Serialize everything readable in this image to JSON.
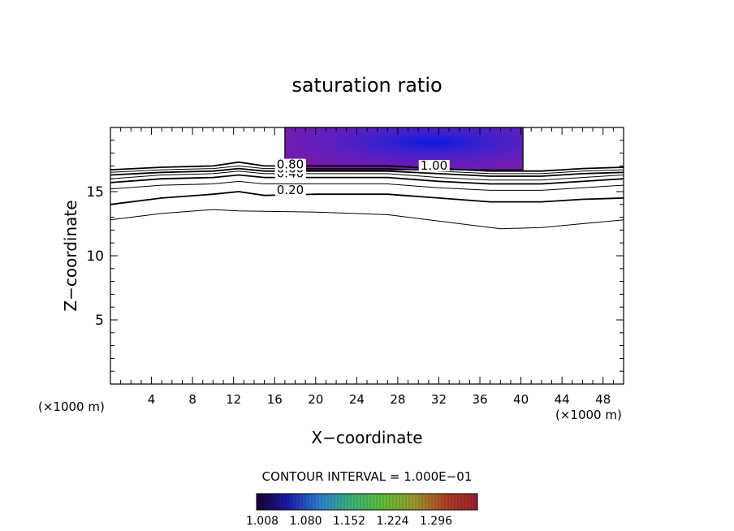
{
  "chart_data": {
    "type": "contour",
    "title": "saturation ratio",
    "xlabel": "X−coordinate",
    "ylabel": "Z−coordinate",
    "x_unit_left": "(×1000 m)",
    "x_unit_right": "(×1000 m)",
    "xlim": [
      0,
      50
    ],
    "ylim": [
      0,
      20
    ],
    "x_ticks": [
      4,
      8,
      12,
      16,
      20,
      24,
      28,
      32,
      36,
      40,
      44,
      48
    ],
    "y_ticks": [
      5,
      10,
      15
    ],
    "contour_interval_text": "CONTOUR INTERVAL = 1.000E−01",
    "contour_labels": [
      {
        "text": "0.20",
        "x": 16.2,
        "y": 14.8
      },
      {
        "text": "0.40",
        "x": 16.2,
        "y": 16.1
      },
      {
        "text": "0.60",
        "x": 16.2,
        "y": 16.5
      },
      {
        "text": "0.80",
        "x": 16.2,
        "y": 16.8
      },
      {
        "text": "1.00",
        "x": 30.2,
        "y": 16.7
      }
    ],
    "contour_lines": [
      {
        "level": 0.1,
        "points": [
          [
            0,
            12.8
          ],
          [
            5,
            13.3
          ],
          [
            10,
            13.6
          ],
          [
            12.5,
            13.5
          ],
          [
            20,
            13.4
          ],
          [
            27,
            13.2
          ],
          [
            33,
            12.6
          ],
          [
            38,
            12.1
          ],
          [
            42,
            12.2
          ],
          [
            46,
            12.5
          ],
          [
            50,
            12.8
          ]
        ]
      },
      {
        "level": 0.2,
        "points": [
          [
            0,
            14.0
          ],
          [
            5,
            14.5
          ],
          [
            10,
            14.8
          ],
          [
            12.5,
            15.0
          ],
          [
            15,
            14.7
          ],
          [
            20,
            14.8
          ],
          [
            27,
            14.8
          ],
          [
            32,
            14.5
          ],
          [
            37,
            14.2
          ],
          [
            42,
            14.2
          ],
          [
            46,
            14.4
          ],
          [
            50,
            14.5
          ]
        ]
      },
      {
        "level": 0.3,
        "points": [
          [
            0,
            15.2
          ],
          [
            5,
            15.5
          ],
          [
            10,
            15.6
          ],
          [
            12.5,
            15.8
          ],
          [
            15,
            15.6
          ],
          [
            20,
            15.6
          ],
          [
            27,
            15.6
          ],
          [
            32,
            15.3
          ],
          [
            37,
            15.1
          ],
          [
            42,
            15.1
          ],
          [
            46,
            15.3
          ],
          [
            50,
            15.5
          ]
        ]
      },
      {
        "level": 0.4,
        "points": [
          [
            0,
            15.7
          ],
          [
            5,
            16.0
          ],
          [
            10,
            16.1
          ],
          [
            12.5,
            16.3
          ],
          [
            15,
            16.1
          ],
          [
            20,
            16.1
          ],
          [
            27,
            16.1
          ],
          [
            32,
            15.8
          ],
          [
            37,
            15.6
          ],
          [
            42,
            15.6
          ],
          [
            46,
            15.8
          ],
          [
            50,
            16.0
          ]
        ]
      },
      {
        "level": 0.5,
        "points": [
          [
            0,
            16.0
          ],
          [
            5,
            16.3
          ],
          [
            10,
            16.4
          ],
          [
            12.5,
            16.6
          ],
          [
            15,
            16.4
          ],
          [
            20,
            16.4
          ],
          [
            27,
            16.4
          ],
          [
            32,
            16.1
          ],
          [
            37,
            15.9
          ],
          [
            42,
            15.9
          ],
          [
            46,
            16.1
          ],
          [
            50,
            16.3
          ]
        ]
      },
      {
        "level": 0.6,
        "points": [
          [
            0,
            16.3
          ],
          [
            5,
            16.5
          ],
          [
            10,
            16.6
          ],
          [
            12.5,
            16.8
          ],
          [
            15,
            16.6
          ],
          [
            20,
            16.6
          ],
          [
            27,
            16.6
          ],
          [
            32,
            16.4
          ],
          [
            37,
            16.2
          ],
          [
            42,
            16.2
          ],
          [
            46,
            16.4
          ],
          [
            50,
            16.5
          ]
        ]
      },
      {
        "level": 0.7,
        "points": [
          [
            0,
            16.5
          ],
          [
            5,
            16.7
          ],
          [
            10,
            16.8
          ],
          [
            12.5,
            17.0
          ],
          [
            15,
            16.8
          ],
          [
            20,
            16.8
          ],
          [
            27,
            16.8
          ],
          [
            32,
            16.6
          ],
          [
            37,
            16.4
          ],
          [
            42,
            16.4
          ],
          [
            46,
            16.6
          ],
          [
            50,
            16.7
          ]
        ]
      },
      {
        "level": 0.8,
        "points": [
          [
            0,
            16.7
          ],
          [
            5,
            16.9
          ],
          [
            10,
            17.0
          ],
          [
            12.5,
            17.3
          ],
          [
            15,
            17.0
          ],
          [
            20,
            17.0
          ],
          [
            27,
            17.0
          ],
          [
            32,
            16.8
          ],
          [
            37,
            16.6
          ],
          [
            42,
            16.6
          ],
          [
            46,
            16.8
          ],
          [
            50,
            16.9
          ]
        ]
      }
    ],
    "shaded_region": {
      "x0": 17.0,
      "x1": 40.2,
      "y0": 16.7,
      "y1": 20.0
    },
    "colorbar": {
      "tick_labels": [
        "1.008",
        "1.080",
        "1.152",
        "1.224",
        "1.296"
      ],
      "colors": [
        "#1a0033",
        "#1a1aaa",
        "#2f7fd0",
        "#3ab37a",
        "#5fbf3a",
        "#9a9a30",
        "#b04020",
        "#9a2030"
      ]
    }
  }
}
